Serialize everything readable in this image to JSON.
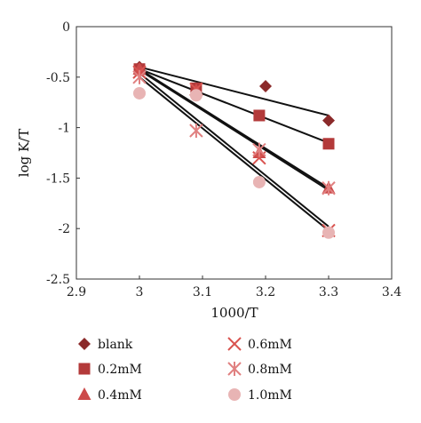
{
  "chart_data": {
    "type": "scatter",
    "title": "",
    "xlabel": "1000/T",
    "ylabel": "log K/T",
    "xlim": [
      2.9,
      3.4
    ],
    "ylim": [
      -2.5,
      0
    ],
    "xticks": [
      "2.9",
      "3",
      "3.1",
      "3.2",
      "3.3",
      "3.4"
    ],
    "yticks": [
      "0",
      "-0.5",
      "-1",
      "-1.5",
      "-2",
      "-2.5"
    ],
    "grid": false,
    "legend_position": "bottom",
    "series": [
      {
        "name": "blank",
        "marker": "diamond",
        "color": "#8b2a2a",
        "x": [
          3.0,
          3.2,
          3.3
        ],
        "y": [
          -0.4,
          -0.59,
          -0.93
        ],
        "fit": {
          "x": [
            3.0,
            3.3
          ],
          "y": [
            -0.4,
            -0.88
          ]
        }
      },
      {
        "name": "0.2mM",
        "marker": "square",
        "color": "#b33a3a",
        "x": [
          3.0,
          3.09,
          3.19,
          3.3
        ],
        "y": [
          -0.42,
          -0.61,
          -0.88,
          -1.16
        ],
        "fit": {
          "x": [
            3.0,
            3.3
          ],
          "y": [
            -0.42,
            -1.15
          ]
        }
      },
      {
        "name": "0.4mM",
        "marker": "triangle",
        "color": "#cc4b4b",
        "x": [
          3.0,
          3.09,
          3.19,
          3.3
        ],
        "y": [
          -0.42,
          -0.63,
          -1.25,
          -1.6
        ],
        "fit": {
          "x": [
            3.0,
            3.3
          ],
          "y": [
            -0.42,
            -1.6
          ]
        }
      },
      {
        "name": "0.6mM",
        "marker": "x",
        "color": "#d9534f",
        "x": [
          3.0,
          3.09,
          3.19,
          3.3
        ],
        "y": [
          -0.45,
          -0.62,
          -1.3,
          -2.02
        ],
        "fit": {
          "x": [
            3.0,
            3.3
          ],
          "y": [
            -0.43,
            -1.62
          ]
        }
      },
      {
        "name": "0.8mM",
        "marker": "asterisk",
        "color": "#e08080",
        "x": [
          3.0,
          3.09,
          3.19,
          3.3
        ],
        "y": [
          -0.5,
          -1.03,
          -1.22,
          -1.6
        ],
        "fit": {
          "x": [
            3.0,
            3.3
          ],
          "y": [
            -0.46,
            -1.98
          ]
        }
      },
      {
        "name": "1.0mM",
        "marker": "circle",
        "color": "#e8b4b4",
        "x": [
          3.0,
          3.09,
          3.19,
          3.3
        ],
        "y": [
          -0.66,
          -0.68,
          -1.54,
          -2.04
        ],
        "fit": {
          "x": [
            3.0,
            3.3
          ],
          "y": [
            -0.5,
            -2.02
          ]
        }
      }
    ]
  }
}
